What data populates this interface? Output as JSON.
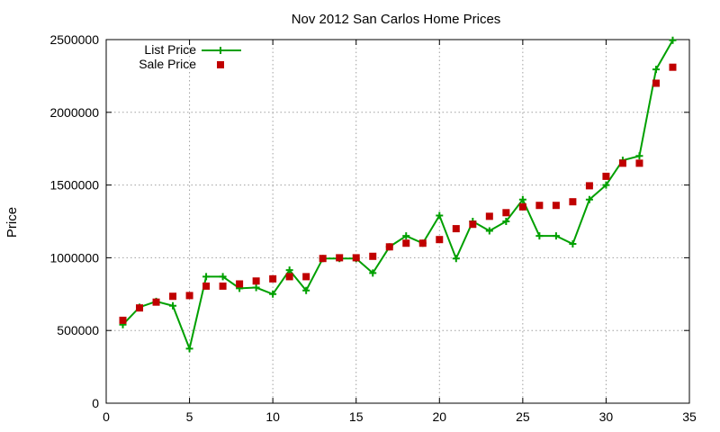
{
  "chart_data": {
    "type": "line",
    "title": "Nov 2012 San Carlos Home Prices",
    "xlabel": "",
    "ylabel": "Price",
    "xlim": [
      0,
      35
    ],
    "ylim": [
      0,
      2500000
    ],
    "x_ticks": [
      "0",
      "5",
      "10",
      "15",
      "20",
      "25",
      "30",
      "35"
    ],
    "y_ticks": [
      "0",
      "500000",
      "1000000",
      "1500000",
      "2000000",
      "2500000"
    ],
    "grid": true,
    "legend_position": "top-left",
    "x": [
      1,
      2,
      3,
      4,
      5,
      6,
      7,
      8,
      9,
      10,
      11,
      12,
      13,
      14,
      15,
      16,
      17,
      18,
      19,
      20,
      21,
      22,
      23,
      24,
      25,
      26,
      27,
      28,
      29,
      30,
      31,
      32,
      33,
      34
    ],
    "series": [
      {
        "name": "List Price",
        "style": "line+cross",
        "color": "#00a000",
        "values": [
          540000,
          660000,
          700000,
          670000,
          375000,
          870000,
          870000,
          790000,
          795000,
          750000,
          915000,
          775000,
          995000,
          995000,
          995000,
          895000,
          1075000,
          1150000,
          1100000,
          1290000,
          995000,
          1250000,
          1185000,
          1250000,
          1400000,
          1150000,
          1150000,
          1095000,
          1400000,
          1500000,
          1670000,
          1700000,
          2295000,
          2495000
        ]
      },
      {
        "name": "Sale Price",
        "style": "square-marker",
        "color": "#c00000",
        "values": [
          570000,
          655000,
          695000,
          735000,
          740000,
          805000,
          805000,
          820000,
          840000,
          855000,
          870000,
          870000,
          995000,
          1000000,
          1000000,
          1010000,
          1075000,
          1100000,
          1100000,
          1125000,
          1200000,
          1230000,
          1285000,
          1310000,
          1350000,
          1360000,
          1360000,
          1385000,
          1495000,
          1560000,
          1650000,
          1650000,
          2200000,
          2310000
        ]
      }
    ]
  }
}
